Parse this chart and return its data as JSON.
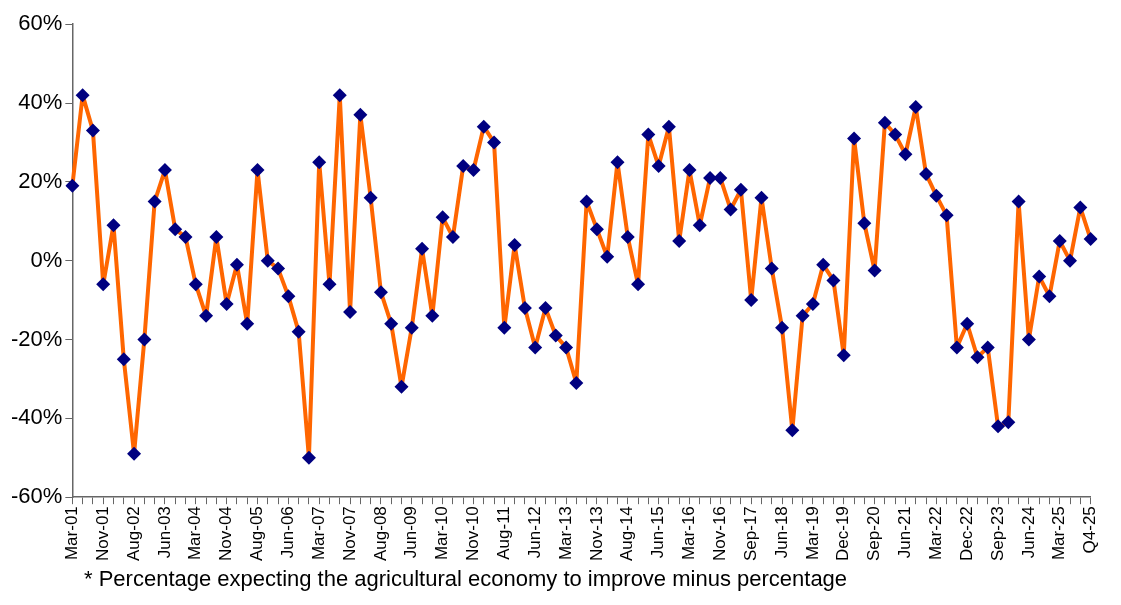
{
  "chart_data": {
    "type": "line",
    "categories": [
      "Mar-01",
      null,
      null,
      "Nov-01",
      null,
      null,
      "Aug-02",
      null,
      null,
      "Jun-03",
      null,
      null,
      "Mar-04",
      null,
      null,
      "Nov-04",
      null,
      null,
      "Aug-05",
      null,
      null,
      "Jun-06",
      null,
      null,
      "Mar-07",
      null,
      null,
      "Nov-07",
      null,
      null,
      "Aug-08",
      null,
      null,
      "Jun-09",
      null,
      null,
      "Mar-10",
      null,
      null,
      "Nov-10",
      null,
      null,
      "Aug-11",
      null,
      null,
      "Jun-12",
      null,
      null,
      "Mar-13",
      null,
      null,
      "Nov-13",
      null,
      null,
      "Aug-14",
      null,
      null,
      "Jun-15",
      null,
      null,
      "Mar-16",
      null,
      null,
      "Nov-16",
      null,
      null,
      "Sep-17",
      null,
      null,
      "Jun-18",
      null,
      null,
      "Mar-19",
      null,
      null,
      "Dec-19",
      null,
      null,
      "Sep-20",
      null,
      null,
      "Jun-21",
      null,
      null,
      "Mar-22",
      null,
      null,
      "Dec-22",
      null,
      null,
      "Sep-23",
      null,
      null,
      "Jun-24",
      null,
      null,
      "Mar-25",
      null,
      null,
      "Q4-25"
    ],
    "series": [
      {
        "color": "#ff6600",
        "values": [
          19,
          42,
          33,
          -6,
          9,
          -25,
          -49,
          -20,
          15,
          23,
          8,
          6,
          -6,
          -14,
          6,
          -11,
          -1,
          -16,
          23,
          0,
          -2,
          -9,
          -18,
          -50,
          25,
          -6,
          42,
          -13,
          37,
          16,
          -8,
          -16,
          -32,
          -17,
          3,
          -14,
          11,
          6,
          24,
          23,
          34,
          30,
          -17,
          4,
          -12,
          -22,
          -12,
          -19,
          -22,
          -31,
          15,
          8,
          1,
          25,
          6,
          -6,
          32,
          24,
          34,
          5,
          23,
          9,
          21,
          21,
          13,
          18,
          -10,
          16,
          -2,
          -17,
          -43,
          -14,
          -11,
          -1,
          -5,
          -24,
          31,
          9.5,
          -2.5,
          35,
          32,
          27,
          39,
          22,
          16.5,
          11.5,
          -22,
          -16,
          -24.5,
          -22,
          -42,
          -41,
          15,
          -20,
          -4,
          -9,
          5,
          0,
          13.5,
          5.5
        ]
      }
    ],
    "ylim": [
      -60,
      60
    ],
    "yticks": [
      {
        "value": -60,
        "label": "-60%"
      },
      {
        "value": -40,
        "label": "-40%"
      },
      {
        "value": -20,
        "label": "-20%"
      },
      {
        "value": 0,
        "label": "0%"
      },
      {
        "value": 20,
        "label": "20%"
      },
      {
        "value": 40,
        "label": "40%"
      },
      {
        "value": 60,
        "label": "60%"
      }
    ],
    "marker": "diamond",
    "line_style": "solid",
    "grid": false,
    "legend": false,
    "annotations": [
      "* Percentage expecting the agricultural economy to improve minus percentage"
    ]
  }
}
